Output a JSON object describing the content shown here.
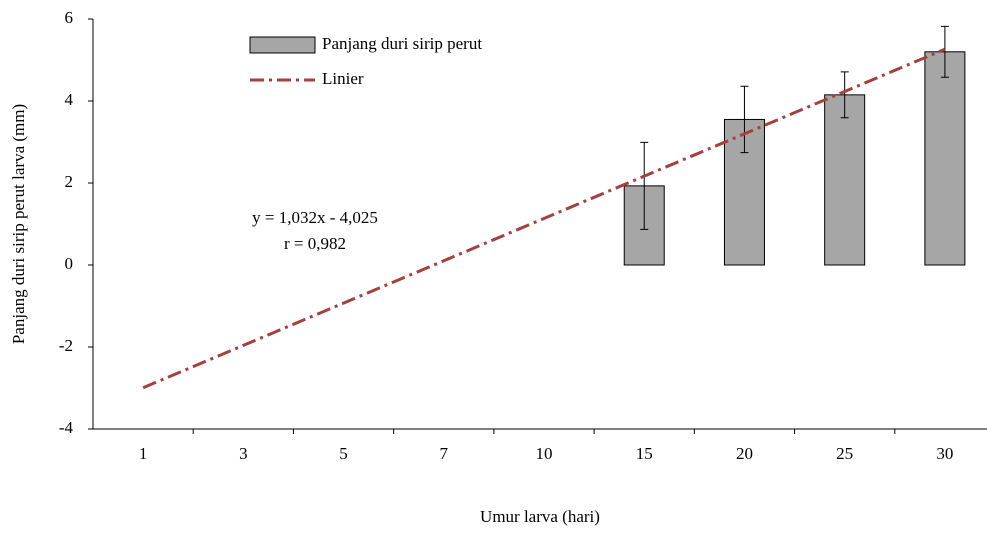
{
  "chart_data": {
    "type": "bar",
    "y_label": "Panjang duri sirip perut larva (mm)",
    "x_label": "Umur larva  (hari)",
    "categories": [
      "1",
      "3",
      "5",
      "7",
      "10",
      "15",
      "20",
      "25",
      "30"
    ],
    "series": [
      {
        "name": "Panjang duri sirip perut",
        "type": "bar",
        "color": "#a6a6a6",
        "values": [
          null,
          null,
          null,
          null,
          null,
          1.93,
          3.55,
          4.15,
          5.2
        ],
        "errors": [
          null,
          null,
          null,
          null,
          null,
          1.06,
          0.81,
          0.56,
          0.62
        ]
      },
      {
        "name": "Linier",
        "type": "line",
        "color": "#a5403e",
        "values": [
          -2.993,
          -1.961,
          -0.929,
          0.103,
          1.135,
          2.167,
          3.199,
          4.231,
          5.263
        ]
      }
    ],
    "annotations": [
      "y = 1,032x - 4,025",
      "r = 0,982"
    ],
    "ylim": [
      -4,
      6
    ],
    "yticks": [
      -4,
      -2,
      0,
      2,
      4,
      6
    ],
    "grid": false
  }
}
